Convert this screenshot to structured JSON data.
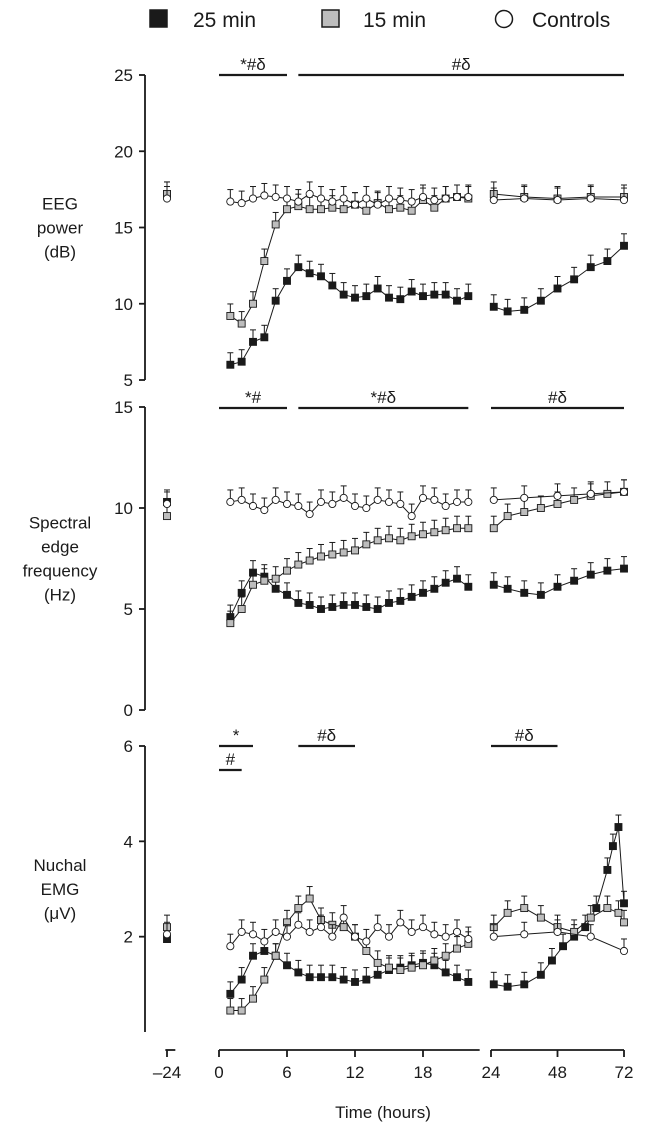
{
  "legend": [
    {
      "label": "25 min",
      "marker": "square-filled",
      "color": "#1a1a1a"
    },
    {
      "label": "15 min",
      "marker": "square-gray",
      "color": "#bdbdbd"
    },
    {
      "label": "Controls",
      "marker": "circle-open",
      "color": "#ffffff"
    }
  ],
  "xaxis": {
    "label": "Time (hours)",
    "ticks": [
      -24,
      0,
      6,
      12,
      18,
      24,
      48,
      72
    ],
    "tick_labels": [
      "–24",
      "0",
      "6",
      "12",
      "18",
      "24",
      "48",
      "72"
    ],
    "segments": [
      [
        -25,
        -19
      ],
      [
        0,
        23
      ],
      [
        24,
        72
      ]
    ],
    "scale_note": "0–24 h and 24–72 h segments shown with different scales"
  },
  "chart_data": [
    {
      "type": "line",
      "ylabel_lines": [
        "EEG",
        "power",
        "(dB)"
      ],
      "ylim": [
        5,
        25
      ],
      "yticks": [
        5,
        10,
        15,
        20,
        25
      ],
      "significance": [
        {
          "label": "*#δ",
          "from": 0,
          "to": 6
        },
        {
          "label": "#δ",
          "from": 7,
          "to": 72
        }
      ],
      "series": [
        {
          "name": "25 min",
          "x": [
            -24,
            1,
            2,
            3,
            4,
            5,
            6,
            7,
            8,
            9,
            10,
            11,
            12,
            13,
            14,
            15,
            16,
            17,
            18,
            19,
            20,
            21,
            22,
            25,
            30,
            36,
            42,
            48,
            54,
            60,
            66,
            72
          ],
          "y": [
            17.2,
            6.0,
            6.2,
            7.5,
            7.8,
            10.2,
            11.5,
            12.4,
            12.0,
            11.8,
            11.2,
            10.6,
            10.4,
            10.5,
            11.0,
            10.4,
            10.3,
            10.8,
            10.5,
            10.6,
            10.6,
            10.2,
            10.5,
            9.8,
            9.5,
            9.6,
            10.2,
            11.0,
            11.6,
            12.4,
            12.8,
            13.8
          ]
        },
        {
          "name": "15 min",
          "x": [
            -24,
            1,
            2,
            3,
            4,
            5,
            6,
            7,
            8,
            9,
            10,
            11,
            12,
            13,
            14,
            15,
            16,
            17,
            18,
            19,
            20,
            21,
            22,
            25,
            36,
            48,
            60,
            72
          ],
          "y": [
            17.2,
            9.2,
            8.7,
            10.0,
            12.8,
            15.2,
            16.2,
            16.4,
            16.2,
            16.2,
            16.3,
            16.2,
            16.5,
            16.1,
            16.6,
            16.2,
            16.3,
            16.1,
            16.8,
            16.3,
            16.9,
            17.0,
            16.9,
            17.2,
            17.0,
            16.9,
            17.0,
            17.0
          ]
        },
        {
          "name": "Controls",
          "x": [
            -24,
            1,
            2,
            3,
            4,
            5,
            6,
            7,
            8,
            9,
            10,
            11,
            12,
            13,
            14,
            15,
            16,
            17,
            18,
            19,
            20,
            21,
            22,
            25,
            36,
            48,
            60,
            72
          ],
          "y": [
            16.9,
            16.7,
            16.6,
            16.9,
            17.1,
            17.0,
            16.9,
            16.7,
            17.2,
            16.9,
            16.7,
            16.9,
            16.5,
            16.9,
            16.5,
            16.9,
            16.8,
            16.7,
            17.0,
            16.8,
            16.9,
            17.0,
            17.0,
            16.8,
            16.9,
            16.8,
            16.9,
            16.8
          ]
        }
      ]
    },
    {
      "type": "line",
      "ylabel_lines": [
        "Spectral",
        "edge",
        "frequency",
        "(Hz)"
      ],
      "ylim": [
        0,
        15
      ],
      "yticks": [
        0,
        5,
        10,
        15
      ],
      "significance": [
        {
          "label": "*#",
          "from": 0,
          "to": 6
        },
        {
          "label": "*#δ",
          "from": 7,
          "to": 22
        },
        {
          "label": "#δ",
          "from": 24,
          "to": 72
        }
      ],
      "series": [
        {
          "name": "25 min",
          "x": [
            -24,
            1,
            2,
            3,
            4,
            5,
            6,
            7,
            8,
            9,
            10,
            11,
            12,
            13,
            14,
            15,
            16,
            17,
            18,
            19,
            20,
            21,
            22,
            25,
            30,
            36,
            42,
            48,
            54,
            60,
            66,
            72
          ],
          "y": [
            10.3,
            4.6,
            5.8,
            6.8,
            6.6,
            6.0,
            5.7,
            5.3,
            5.2,
            5.0,
            5.1,
            5.2,
            5.2,
            5.1,
            5.0,
            5.3,
            5.4,
            5.6,
            5.8,
            6.0,
            6.3,
            6.5,
            6.1,
            6.2,
            6.0,
            5.8,
            5.7,
            6.1,
            6.4,
            6.7,
            6.9,
            7.0
          ]
        },
        {
          "name": "15 min",
          "x": [
            -24,
            1,
            2,
            3,
            4,
            5,
            6,
            7,
            8,
            9,
            10,
            11,
            12,
            13,
            14,
            15,
            16,
            17,
            18,
            19,
            20,
            21,
            22,
            25,
            30,
            36,
            42,
            48,
            54,
            60,
            66,
            72
          ],
          "y": [
            9.6,
            4.3,
            5.0,
            6.2,
            6.4,
            6.5,
            6.9,
            7.2,
            7.4,
            7.6,
            7.7,
            7.8,
            7.9,
            8.2,
            8.4,
            8.5,
            8.4,
            8.6,
            8.7,
            8.8,
            8.9,
            9.0,
            9.0,
            9.0,
            9.6,
            9.8,
            10.0,
            10.2,
            10.4,
            10.6,
            10.7,
            10.8
          ]
        },
        {
          "name": "Controls",
          "x": [
            -24,
            1,
            2,
            3,
            4,
            5,
            6,
            7,
            8,
            9,
            10,
            11,
            12,
            13,
            14,
            15,
            16,
            17,
            18,
            19,
            20,
            21,
            22,
            25,
            36,
            48,
            60,
            72
          ],
          "y": [
            10.2,
            10.3,
            10.4,
            10.1,
            9.9,
            10.4,
            10.2,
            10.1,
            9.7,
            10.3,
            10.2,
            10.5,
            10.1,
            10.0,
            10.4,
            10.3,
            10.2,
            9.6,
            10.5,
            10.4,
            10.1,
            10.3,
            10.3,
            10.4,
            10.5,
            10.6,
            10.7,
            10.8
          ]
        }
      ]
    },
    {
      "type": "line",
      "ylabel_lines": [
        "Nuchal",
        "EMG",
        "(μV)"
      ],
      "ylim": [
        0,
        6
      ],
      "yticks": [
        2,
        4,
        6
      ],
      "significance": [
        {
          "label": "*",
          "from": 0,
          "to": 3
        },
        {
          "label": "#",
          "from": 0,
          "to": 2
        },
        {
          "label": "#δ",
          "from": 7,
          "to": 12
        },
        {
          "label": "#δ",
          "from": 24,
          "to": 48
        }
      ],
      "series": [
        {
          "name": "25 min",
          "x": [
            -24,
            1,
            2,
            3,
            4,
            5,
            6,
            7,
            8,
            9,
            10,
            11,
            12,
            13,
            14,
            15,
            16,
            17,
            18,
            19,
            20,
            21,
            22,
            25,
            30,
            36,
            42,
            46,
            50,
            54,
            58,
            62,
            66,
            68,
            70,
            72
          ],
          "y": [
            1.95,
            0.8,
            1.1,
            1.6,
            1.7,
            1.6,
            1.4,
            1.25,
            1.15,
            1.15,
            1.15,
            1.1,
            1.05,
            1.1,
            1.2,
            1.3,
            1.35,
            1.4,
            1.45,
            1.4,
            1.25,
            1.15,
            1.05,
            1.0,
            0.95,
            1.0,
            1.2,
            1.5,
            1.8,
            2.0,
            2.2,
            2.6,
            3.4,
            3.9,
            4.3,
            2.7
          ]
        },
        {
          "name": "15 min",
          "x": [
            -24,
            1,
            2,
            3,
            4,
            5,
            6,
            7,
            8,
            9,
            10,
            11,
            12,
            13,
            14,
            15,
            16,
            17,
            18,
            19,
            20,
            21,
            22,
            25,
            30,
            36,
            42,
            48,
            54,
            60,
            66,
            70,
            72
          ],
          "y": [
            2.2,
            0.45,
            0.45,
            0.7,
            1.1,
            1.6,
            2.3,
            2.6,
            2.8,
            2.35,
            2.25,
            2.2,
            2.0,
            1.7,
            1.45,
            1.35,
            1.3,
            1.35,
            1.4,
            1.5,
            1.6,
            1.75,
            1.85,
            2.2,
            2.5,
            2.6,
            2.4,
            2.2,
            2.1,
            2.4,
            2.6,
            2.5,
            2.3
          ]
        },
        {
          "name": "Controls",
          "x": [
            -24,
            1,
            2,
            3,
            4,
            5,
            6,
            7,
            8,
            9,
            10,
            11,
            12,
            13,
            14,
            15,
            16,
            17,
            18,
            19,
            20,
            21,
            22,
            25,
            36,
            48,
            60,
            72
          ],
          "y": [
            2.05,
            1.8,
            2.1,
            2.05,
            1.9,
            2.1,
            2.0,
            2.25,
            2.1,
            2.2,
            2.0,
            2.4,
            2.0,
            1.9,
            2.2,
            2.0,
            2.3,
            2.1,
            2.2,
            2.05,
            2.0,
            2.1,
            1.95,
            2.0,
            2.05,
            2.1,
            2.0,
            1.7
          ]
        }
      ]
    }
  ]
}
